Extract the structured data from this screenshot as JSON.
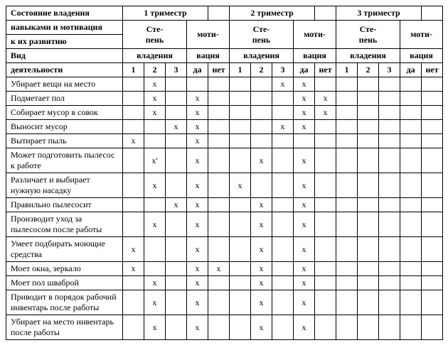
{
  "headers": {
    "state_line1": "Состояние владения",
    "state_line2": "навыками и мотивация",
    "state_line3": "к их развитию",
    "trimester1": "1 триместр",
    "trimester2": "2 триместр",
    "trimester3": "3 триместр",
    "degree_line1": "Сте-",
    "degree_line2": "пень",
    "degree_line3": "владения",
    "motiv_line1": "моти-",
    "motiv_line2": "вация",
    "activity_line1": "Вид",
    "activity_line2": "деятельности",
    "c1": "1",
    "c2": "2",
    "c3": "3",
    "yes": "да",
    "no": "нет"
  },
  "mark": "х",
  "mark_apos": "х'",
  "rows": [
    {
      "label": "Убирает вещи на место",
      "t1d": [
        0,
        1,
        0
      ],
      "t1m": [
        0,
        0
      ],
      "t2d": [
        0,
        0,
        1
      ],
      "t2m": [
        1,
        0
      ],
      "t3d": [
        0,
        0,
        0
      ],
      "t3m": [
        0,
        0
      ]
    },
    {
      "label": "Подметает пол",
      "t1d": [
        0,
        1,
        0
      ],
      "t1m": [
        1,
        0
      ],
      "t2d": [
        0,
        0,
        0
      ],
      "t2m": [
        1,
        1
      ],
      "t3d": [
        0,
        0,
        0
      ],
      "t3m": [
        0,
        0
      ]
    },
    {
      "label": "Собирает мусор в совок",
      "t1d": [
        0,
        1,
        0
      ],
      "t1m": [
        1,
        0
      ],
      "t2d": [
        0,
        0,
        0
      ],
      "t2m": [
        1,
        1
      ],
      "t3d": [
        0,
        0,
        0
      ],
      "t3m": [
        0,
        0
      ]
    },
    {
      "label": "Выносит мусор",
      "t1d": [
        0,
        0,
        1
      ],
      "t1m": [
        1,
        0
      ],
      "t2d": [
        0,
        0,
        1
      ],
      "t2m": [
        1,
        0
      ],
      "t3d": [
        0,
        0,
        0
      ],
      "t3m": [
        0,
        0
      ]
    },
    {
      "label": "Вытирает пыль",
      "t1d": [
        1,
        0,
        0
      ],
      "t1m": [
        1,
        0
      ],
      "t2d": [
        0,
        0,
        0
      ],
      "t2m": [
        0,
        0
      ],
      "t3d": [
        0,
        0,
        0
      ],
      "t3m": [
        0,
        0
      ]
    },
    {
      "label": "Может подготовить пылесос к работе",
      "t1d": [
        0,
        2,
        0
      ],
      "t1m": [
        1,
        0
      ],
      "t2d": [
        0,
        1,
        0
      ],
      "t2m": [
        1,
        0
      ],
      "t3d": [
        0,
        0,
        0
      ],
      "t3m": [
        0,
        0
      ]
    },
    {
      "label": "Различает и выбирает нужную насадку",
      "t1d": [
        0,
        1,
        0
      ],
      "t1m": [
        1,
        0
      ],
      "t2d": [
        1,
        0,
        0
      ],
      "t2m": [
        1,
        0
      ],
      "t3d": [
        0,
        0,
        0
      ],
      "t3m": [
        0,
        0
      ]
    },
    {
      "label": "Правильно пылесосит",
      "t1d": [
        0,
        0,
        1
      ],
      "t1m": [
        1,
        0
      ],
      "t2d": [
        0,
        1,
        0
      ],
      "t2m": [
        1,
        0
      ],
      "t3d": [
        0,
        0,
        0
      ],
      "t3m": [
        0,
        0
      ]
    },
    {
      "label": "Производит уход за пылесосом после работы",
      "t1d": [
        0,
        1,
        0
      ],
      "t1m": [
        1,
        0
      ],
      "t2d": [
        0,
        1,
        0
      ],
      "t2m": [
        1,
        0
      ],
      "t3d": [
        0,
        0,
        0
      ],
      "t3m": [
        0,
        0
      ]
    },
    {
      "label": "Умеет подбирать моющие средства",
      "t1d": [
        1,
        0,
        0
      ],
      "t1m": [
        1,
        0
      ],
      "t2d": [
        0,
        1,
        0
      ],
      "t2m": [
        1,
        0
      ],
      "t3d": [
        0,
        0,
        0
      ],
      "t3m": [
        0,
        0
      ]
    },
    {
      "label": "Моет окна, зеркало",
      "t1d": [
        1,
        0,
        0
      ],
      "t1m": [
        1,
        1
      ],
      "t2d": [
        0,
        1,
        0
      ],
      "t2m": [
        1,
        0
      ],
      "t3d": [
        0,
        0,
        0
      ],
      "t3m": [
        0,
        0
      ]
    },
    {
      "label": "Моет пол шваброй",
      "t1d": [
        0,
        1,
        0
      ],
      "t1m": [
        1,
        0
      ],
      "t2d": [
        0,
        1,
        0
      ],
      "t2m": [
        1,
        0
      ],
      "t3d": [
        0,
        0,
        0
      ],
      "t3m": [
        0,
        0
      ]
    },
    {
      "label": "Приводит в порядок рабочий инвентарь после работы",
      "t1d": [
        0,
        1,
        0
      ],
      "t1m": [
        1,
        0
      ],
      "t2d": [
        0,
        1,
        0
      ],
      "t2m": [
        1,
        0
      ],
      "t3d": [
        0,
        0,
        0
      ],
      "t3m": [
        0,
        0
      ]
    },
    {
      "label": "Убирает на место инвентарь после работы",
      "t1d": [
        0,
        1,
        0
      ],
      "t1m": [
        1,
        0
      ],
      "t2d": [
        0,
        1,
        0
      ],
      "t2m": [
        1,
        0
      ],
      "t3d": [
        0,
        0,
        0
      ],
      "t3m": [
        0,
        0
      ]
    }
  ]
}
